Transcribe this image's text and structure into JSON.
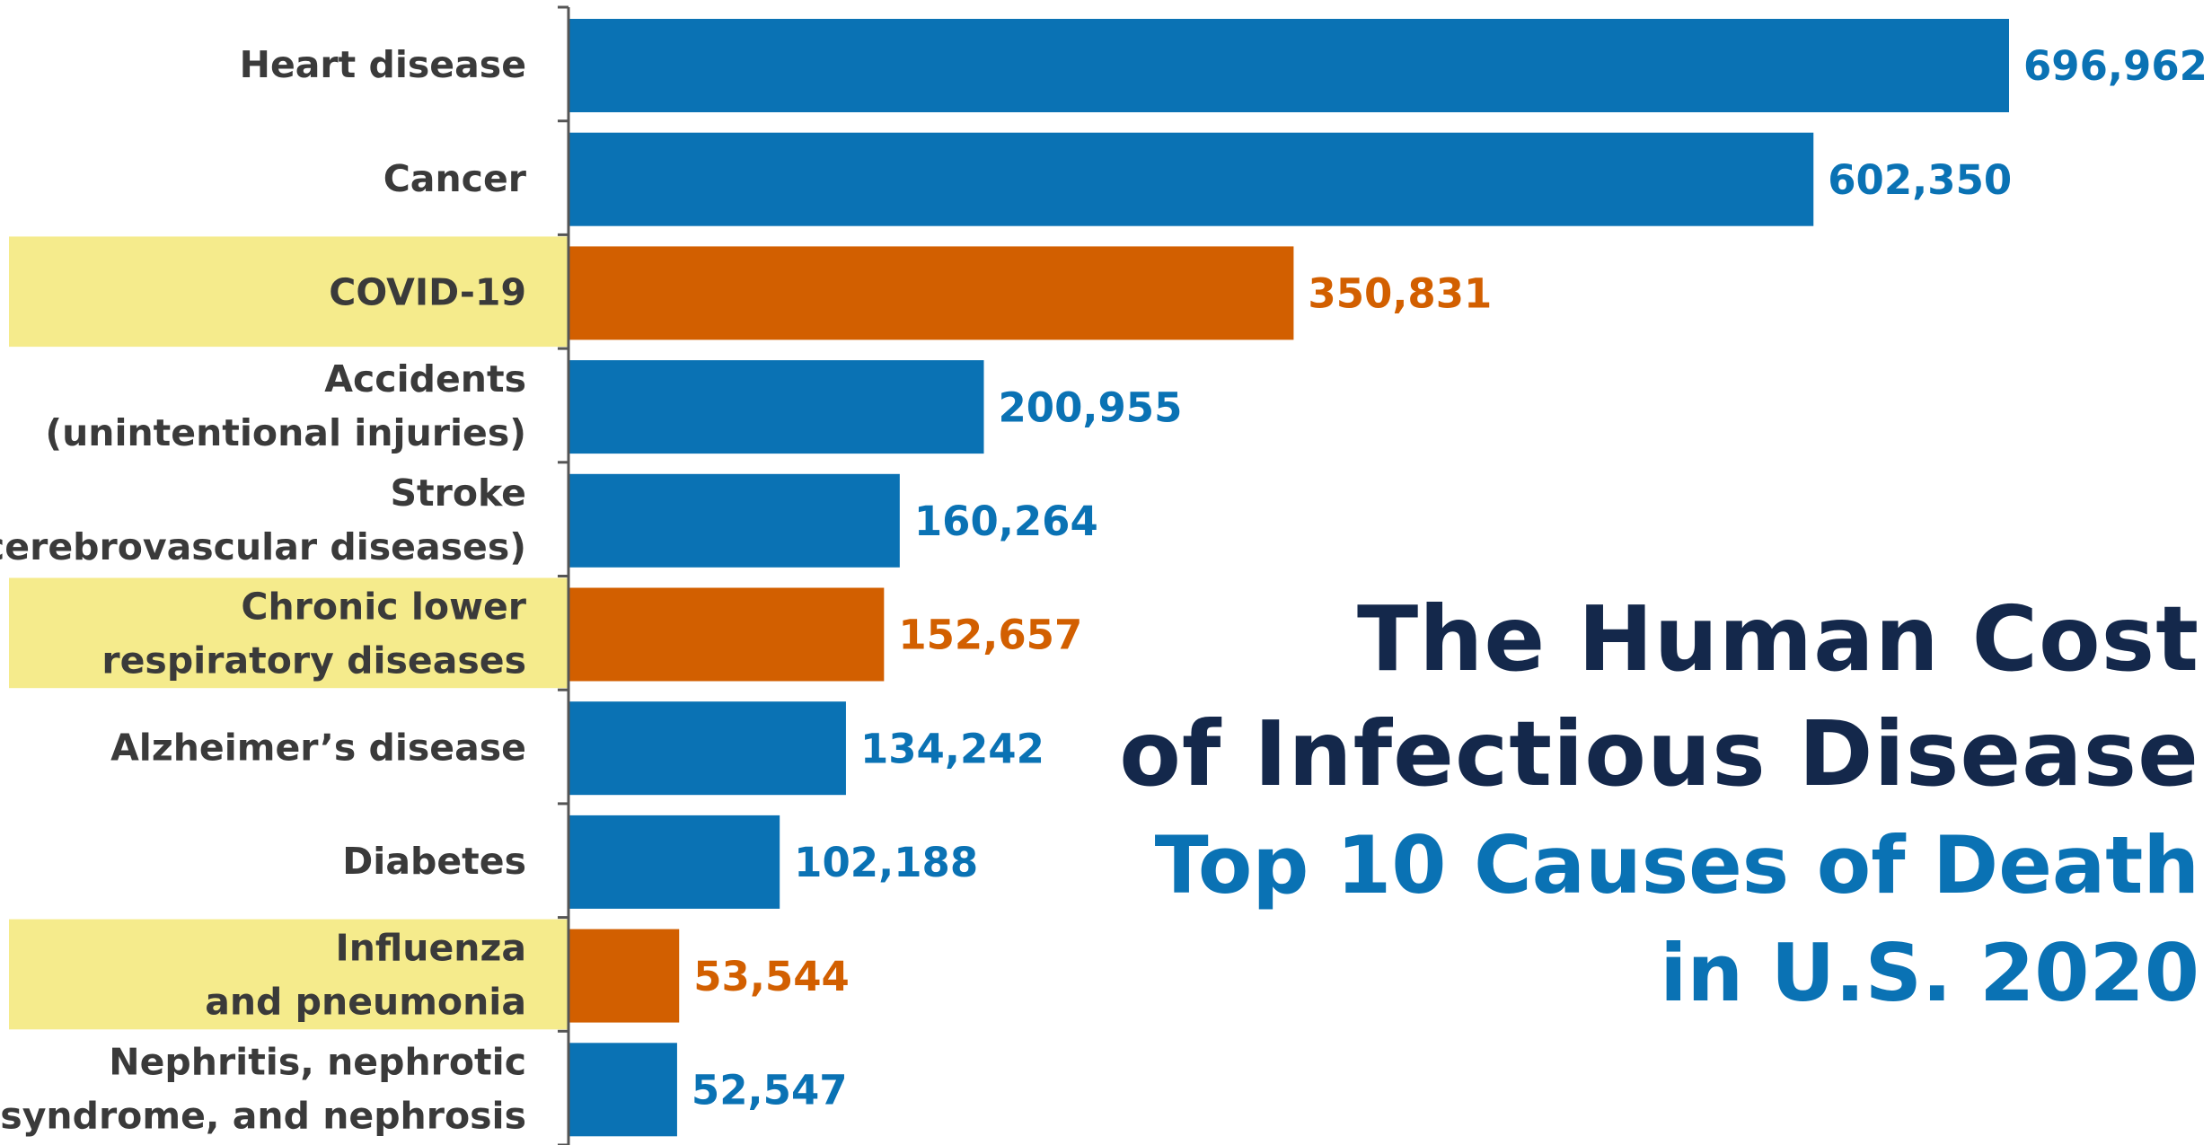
{
  "chart_data": {
    "type": "bar",
    "orientation": "horizontal",
    "title_lines": [
      "The Human Cost",
      "of Infectious Disease"
    ],
    "subtitle_lines": [
      "Top 10 Causes of Death",
      "in U.S. 2020"
    ],
    "categories": [
      {
        "label_lines": [
          "Heart disease"
        ],
        "value": 696962,
        "value_label": "696,962",
        "infectious": false
      },
      {
        "label_lines": [
          "Cancer"
        ],
        "value": 602350,
        "value_label": "602,350",
        "infectious": false
      },
      {
        "label_lines": [
          "COVID-19"
        ],
        "value": 350831,
        "value_label": "350,831",
        "infectious": true
      },
      {
        "label_lines": [
          "Accidents",
          "(unintentional injuries)"
        ],
        "value": 200955,
        "value_label": "200,955",
        "infectious": false
      },
      {
        "label_lines": [
          "Stroke",
          "(cerebrovascular diseases)"
        ],
        "value": 160264,
        "value_label": "160,264",
        "infectious": false
      },
      {
        "label_lines": [
          "Chronic lower",
          "respiratory diseases"
        ],
        "value": 152657,
        "value_label": "152,657",
        "infectious": true
      },
      {
        "label_lines": [
          "Alzheimer’s disease"
        ],
        "value": 134242,
        "value_label": "134,242",
        "infectious": false
      },
      {
        "label_lines": [
          "Diabetes"
        ],
        "value": 102188,
        "value_label": "102,188",
        "infectious": false
      },
      {
        "label_lines": [
          "Influenza",
          "and pneumonia"
        ],
        "value": 53544,
        "value_label": "53,544",
        "infectious": true
      },
      {
        "label_lines": [
          "Nephritis, nephrotic",
          "syndrome, and nephrosis"
        ],
        "value": 52547,
        "value_label": "52,547",
        "infectious": false
      }
    ],
    "xlim": [
      0,
      696962
    ],
    "grid": false,
    "colors": {
      "default_bar": "#0a72b4",
      "highlight_bar": "#d25f00",
      "highlight_label_bg": "#f5eb8c",
      "category_text": "#3a3a3a",
      "axis": "#555555"
    }
  }
}
